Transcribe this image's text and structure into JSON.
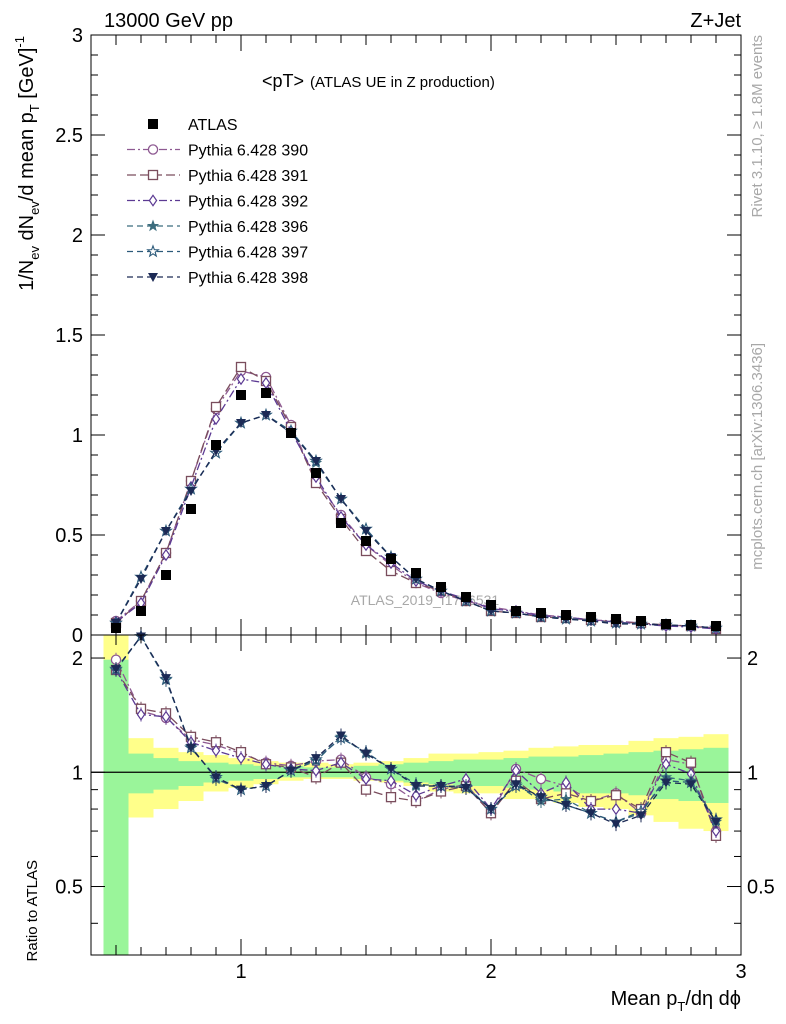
{
  "header": {
    "left": "13000 GeV pp",
    "right": "Z+Jet"
  },
  "side_labels": {
    "rivet": "Rivet 3.1.10, ≥ 1.8M events",
    "mcplots": "mcplots.cern.ch [arXiv:1306.3436]"
  },
  "watermark": "ATLAS_2019_I1736531",
  "chart_data": [
    {
      "type": "scatter",
      "title_main": "<pT>",
      "title_sub": "(ATLAS UE in Z production)",
      "ylabel": {
        "a": "1/N",
        "a_sub": "ev",
        "b": " dN",
        "b_sub": "ev",
        "c": "/d mean p",
        "c_sub": "T",
        "d": " [GeV]",
        "d_sup": "-1"
      },
      "xlabel": {
        "a": "Mean p",
        "a_sub": "T",
        "b": "/dη dϕ"
      },
      "xlim": [
        0.4,
        3.0
      ],
      "ylim": [
        0,
        3
      ],
      "x_ticks": [
        1,
        2,
        3
      ],
      "y_ticks": [
        0,
        0.5,
        1,
        1.5,
        2,
        2.5,
        3
      ],
      "y_tick_labels": [
        "0",
        "0.5",
        "1",
        "1.5",
        "2",
        "2.5",
        "3"
      ],
      "x": [
        0.5,
        0.6,
        0.7,
        0.8,
        0.9,
        1.0,
        1.1,
        1.2,
        1.3,
        1.4,
        1.5,
        1.6,
        1.7,
        1.8,
        1.9,
        2.0,
        2.1,
        2.2,
        2.3,
        2.4,
        2.5,
        2.6,
        2.7,
        2.8,
        2.9
      ],
      "data": {
        "name": "ATLAS",
        "color": "#000000",
        "values": [
          0.035,
          0.12,
          0.3,
          0.63,
          0.95,
          1.2,
          1.21,
          1.01,
          0.81,
          0.56,
          0.47,
          0.38,
          0.31,
          0.24,
          0.19,
          0.15,
          0.12,
          0.11,
          0.1,
          0.09,
          0.08,
          0.07,
          0.055,
          0.05,
          0.045
        ]
      },
      "series": [
        {
          "name": "Pythia 6.428 390",
          "color": "#8e5a92",
          "marker": "circle-open",
          "dash": "8,3,2,3",
          "values": [
            0.07,
            0.17,
            0.41,
            0.77,
            1.13,
            1.32,
            1.29,
            1.05,
            0.77,
            0.6,
            0.45,
            0.35,
            0.26,
            0.21,
            0.17,
            0.14,
            0.12,
            0.1,
            0.09,
            0.075,
            0.07,
            0.06,
            0.05,
            0.045,
            0.035
          ]
        },
        {
          "name": "Pythia 6.428 391",
          "color": "#7a4d5d",
          "marker": "square-open",
          "dash": "9,4",
          "values": [
            0.06,
            0.17,
            0.41,
            0.77,
            1.14,
            1.34,
            1.27,
            1.04,
            0.76,
            0.58,
            0.42,
            0.32,
            0.26,
            0.22,
            0.17,
            0.12,
            0.11,
            0.09,
            0.085,
            0.075,
            0.065,
            0.06,
            0.05,
            0.045,
            0.03
          ]
        },
        {
          "name": "Pythia 6.428 392",
          "color": "#5c3a93",
          "marker": "diamond-open",
          "dash": "8,3,2,3",
          "values": [
            0.065,
            0.16,
            0.4,
            0.74,
            1.08,
            1.28,
            1.26,
            1.02,
            0.79,
            0.59,
            0.45,
            0.36,
            0.27,
            0.22,
            0.18,
            0.13,
            0.12,
            0.095,
            0.09,
            0.075,
            0.065,
            0.055,
            0.045,
            0.04,
            0.03
          ]
        },
        {
          "name": "Pythia 6.428 396",
          "color": "#3b6c7d",
          "marker": "star-filled",
          "dash": "6,4",
          "values": [
            0.06,
            0.29,
            0.52,
            0.73,
            0.91,
            1.06,
            1.1,
            1.02,
            0.86,
            0.68,
            0.53,
            0.39,
            0.28,
            0.22,
            0.17,
            0.12,
            0.11,
            0.09,
            0.085,
            0.07,
            0.06,
            0.055,
            0.05,
            0.045,
            0.035
          ]
        },
        {
          "name": "Pythia 6.428 397",
          "color": "#2c5a7a",
          "marker": "star-open",
          "dash": "6,4",
          "values": [
            0.06,
            0.29,
            0.52,
            0.73,
            0.91,
            1.06,
            1.1,
            1.02,
            0.87,
            0.68,
            0.53,
            0.39,
            0.28,
            0.22,
            0.17,
            0.12,
            0.11,
            0.09,
            0.08,
            0.07,
            0.06,
            0.055,
            0.05,
            0.045,
            0.035
          ]
        },
        {
          "name": "Pythia 6.428 398",
          "color": "#1c2a55",
          "marker": "triangle-down-filled",
          "dash": "6,4",
          "values": [
            0.06,
            0.28,
            0.52,
            0.72,
            0.92,
            1.06,
            1.1,
            1.01,
            0.87,
            0.68,
            0.52,
            0.39,
            0.28,
            0.22,
            0.17,
            0.12,
            0.11,
            0.09,
            0.08,
            0.07,
            0.055,
            0.055,
            0.05,
            0.045,
            0.035
          ]
        }
      ]
    },
    {
      "type": "line",
      "ylabel": "Ratio to ATLAS",
      "xlim": [
        0.4,
        3.0
      ],
      "ylim": [
        0.33,
        2.3
      ],
      "y_ticks": [
        0.5,
        1,
        2
      ],
      "y_tick_labels": [
        "0.5",
        "1",
        "2"
      ],
      "x_tick_labels": [
        "1",
        "2",
        "3"
      ],
      "reference_line": 1,
      "band_edges": [
        0.45,
        0.55,
        0.65,
        0.75,
        0.85,
        0.95,
        1.05,
        1.15,
        1.25,
        1.35,
        1.45,
        1.55,
        1.65,
        1.75,
        1.85,
        1.95,
        2.05,
        2.15,
        2.25,
        2.35,
        2.45,
        2.55,
        2.65,
        2.75,
        2.85,
        2.95
      ],
      "band_yellow": [
        [
          0.33,
          2.3
        ],
        [
          0.76,
          1.23
        ],
        [
          0.8,
          1.16
        ],
        [
          0.84,
          1.13
        ],
        [
          0.89,
          1.11
        ],
        [
          0.91,
          1.09
        ],
        [
          0.93,
          1.07
        ],
        [
          0.95,
          1.06
        ],
        [
          0.96,
          1.06
        ],
        [
          0.96,
          1.05
        ],
        [
          0.95,
          1.06
        ],
        [
          0.94,
          1.07
        ],
        [
          0.92,
          1.09
        ],
        [
          0.89,
          1.12
        ],
        [
          0.88,
          1.12
        ],
        [
          0.88,
          1.13
        ],
        [
          0.85,
          1.14
        ],
        [
          0.85,
          1.16
        ],
        [
          0.83,
          1.17
        ],
        [
          0.81,
          1.18
        ],
        [
          0.8,
          1.18
        ],
        [
          0.77,
          1.21
        ],
        [
          0.74,
          1.23
        ],
        [
          0.71,
          1.24
        ],
        [
          0.7,
          1.26
        ]
      ],
      "band_green": [
        [
          0.33,
          1.98
        ],
        [
          0.88,
          1.12
        ],
        [
          0.9,
          1.09
        ],
        [
          0.92,
          1.07
        ],
        [
          0.94,
          1.06
        ],
        [
          0.95,
          1.05
        ],
        [
          0.96,
          1.04
        ],
        [
          0.97,
          1.04
        ],
        [
          0.97,
          1.03
        ],
        [
          0.97,
          1.03
        ],
        [
          0.96,
          1.04
        ],
        [
          0.95,
          1.05
        ],
        [
          0.94,
          1.06
        ],
        [
          0.93,
          1.07
        ],
        [
          0.92,
          1.08
        ],
        [
          0.92,
          1.08
        ],
        [
          0.91,
          1.09
        ],
        [
          0.9,
          1.1
        ],
        [
          0.89,
          1.1
        ],
        [
          0.88,
          1.11
        ],
        [
          0.88,
          1.12
        ],
        [
          0.87,
          1.13
        ],
        [
          0.85,
          1.14
        ],
        [
          0.84,
          1.15
        ],
        [
          0.83,
          1.16
        ]
      ],
      "series": [
        {
          "name": "Pythia 6.428 390",
          "values": [
            1.98,
            1.45,
            1.39,
            1.22,
            1.18,
            1.12,
            1.06,
            1.04,
            1.07,
            1.08,
            0.97,
            0.93,
            0.84,
            0.9,
            0.93,
            0.78,
            1.02,
            0.96,
            0.92,
            0.84,
            0.88,
            0.78,
            1.08,
            1.05,
            0.7
          ]
        },
        {
          "name": "Pythia 6.428 391",
          "values": [
            1.86,
            1.47,
            1.43,
            1.24,
            1.2,
            1.13,
            1.05,
            1.03,
            0.97,
            1.06,
            0.9,
            0.86,
            0.84,
            0.89,
            0.92,
            0.78,
            0.95,
            0.85,
            0.88,
            0.84,
            0.87,
            0.8,
            1.13,
            1.06,
            0.68
          ]
        },
        {
          "name": "Pythia 6.428 392",
          "values": [
            1.86,
            1.42,
            1.4,
            1.2,
            1.14,
            1.09,
            1.05,
            1.02,
            1.01,
            1.06,
            0.96,
            0.95,
            0.87,
            0.92,
            0.96,
            0.8,
            1.01,
            0.88,
            0.94,
            0.8,
            0.8,
            0.78,
            1.05,
            0.99,
            0.7
          ]
        },
        {
          "name": "Pythia 6.428 396",
          "values": [
            1.86,
            2.28,
            1.75,
            1.17,
            0.96,
            0.9,
            0.92,
            1.01,
            1.07,
            1.24,
            1.12,
            1.02,
            0.92,
            0.92,
            0.92,
            0.8,
            0.93,
            0.84,
            0.85,
            0.78,
            0.74,
            0.78,
            0.97,
            0.95,
            0.74
          ]
        },
        {
          "name": "Pythia 6.428 397",
          "values": [
            1.87,
            2.28,
            1.76,
            1.16,
            0.97,
            0.9,
            0.92,
            1.01,
            1.08,
            1.23,
            1.13,
            1.02,
            0.93,
            0.92,
            0.91,
            0.8,
            0.92,
            0.86,
            0.82,
            0.78,
            0.74,
            0.79,
            0.95,
            0.94,
            0.75
          ]
        },
        {
          "name": "Pythia 6.428 398",
          "values": [
            1.87,
            2.28,
            1.77,
            1.16,
            0.97,
            0.9,
            0.92,
            1.01,
            1.09,
            1.25,
            1.12,
            1.02,
            0.92,
            0.92,
            0.91,
            0.8,
            0.93,
            0.86,
            0.82,
            0.78,
            0.73,
            0.77,
            0.94,
            0.93,
            0.74
          ]
        }
      ]
    }
  ]
}
